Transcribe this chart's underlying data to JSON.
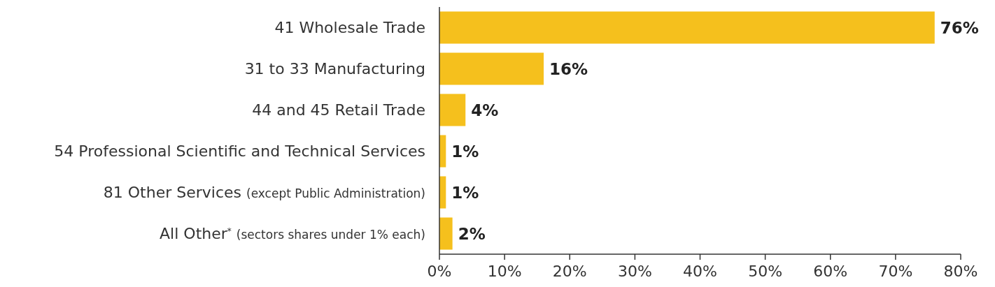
{
  "chart_data": {
    "type": "bar",
    "orientation": "horizontal",
    "categories": [
      "41 Wholesale Trade",
      "31 to 33 Manufacturing",
      "44 and 45 Retail Trade",
      "54 Professional Scientific and Technical Services",
      "81 Other Services (except Public Administration)",
      "All Other$^{*}$ (sectors shares under 1% each)"
    ],
    "values": [
      76,
      16,
      4,
      1,
      1,
      2
    ],
    "color": "#f5c01d",
    "xlim": [
      0,
      80
    ],
    "xticks": [
      {
        "value": 0,
        "label": "0%"
      },
      {
        "value": 10,
        "label": "10%"
      },
      {
        "value": 20,
        "label": "20%"
      },
      {
        "value": 30,
        "label": "30%"
      },
      {
        "value": 40,
        "label": "40%"
      },
      {
        "value": 50,
        "label": "50%"
      },
      {
        "value": 60,
        "label": "60%"
      },
      {
        "value": 70,
        "label": "70%"
      },
      {
        "value": 80,
        "label": "80%"
      }
    ],
    "value_labels": [
      "76%",
      "16%",
      "4%",
      "1%",
      "1%",
      "2%"
    ],
    "grid": false
  }
}
